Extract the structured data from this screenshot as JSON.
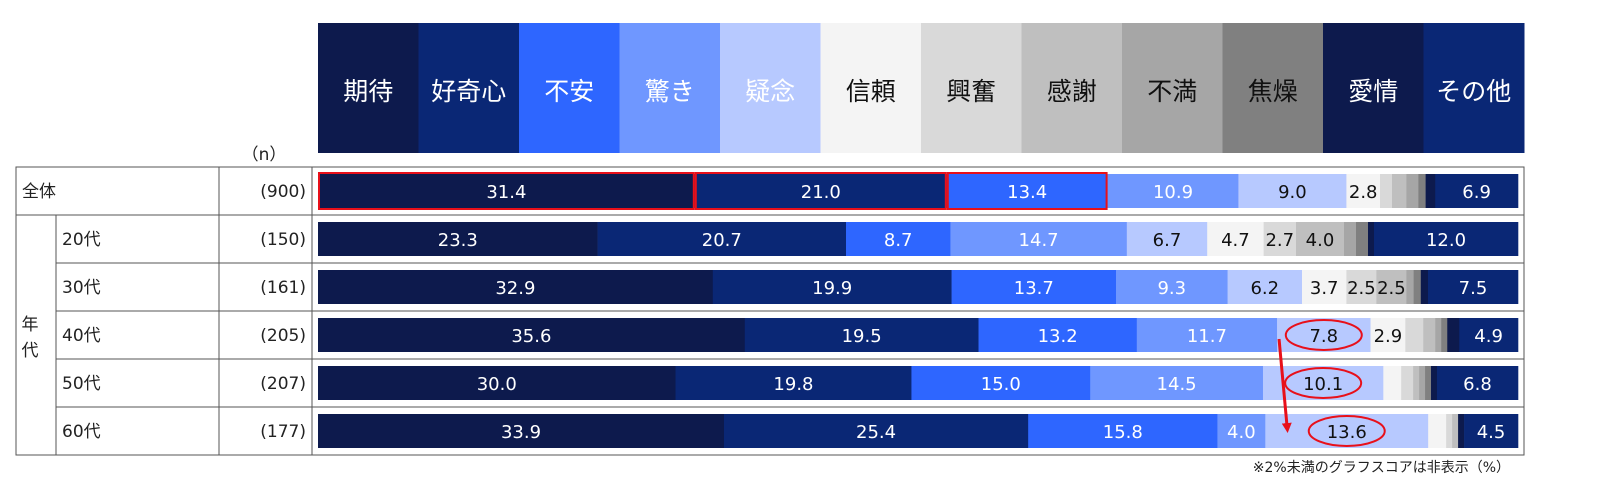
{
  "chart_data": {
    "type": "bar",
    "stacked": true,
    "orientation": "horizontal",
    "normalized": true,
    "legend_position": "top",
    "n_label": "（n）",
    "series": [
      {
        "name": "期待",
        "color": "#0d1a4d"
      },
      {
        "name": "好奇心",
        "color": "#0a2775"
      },
      {
        "name": "不安",
        "color": "#2e66ff"
      },
      {
        "name": "驚き",
        "color": "#6f97ff"
      },
      {
        "name": "疑念",
        "color": "#b7c9ff"
      },
      {
        "name": "信頼",
        "color": "#f4f4f4"
      },
      {
        "name": "興奮",
        "color": "#d9d9d9"
      },
      {
        "name": "感謝",
        "color": "#bfbfbf"
      },
      {
        "name": "不満",
        "color": "#a6a6a6"
      },
      {
        "name": "焦燥",
        "color": "#808080"
      },
      {
        "name": "愛情",
        "color": "#0d1a4d"
      },
      {
        "name": "その他",
        "color": "#0a2775"
      }
    ],
    "rows": [
      {
        "group": "全体",
        "label": "",
        "n": "(900)",
        "values": [
          31.4,
          21.0,
          13.4,
          10.9,
          9.0,
          2.8,
          1.0,
          1.2,
          1.0,
          0.6,
          0.8,
          6.9
        ]
      },
      {
        "group": "年代",
        "label": "20代",
        "n": "(150)",
        "values": [
          23.3,
          20.7,
          8.7,
          14.7,
          6.7,
          4.7,
          2.7,
          4.0,
          1.0,
          1.0,
          0.5,
          12.0
        ]
      },
      {
        "group": "年代",
        "label": "30代",
        "n": "(161)",
        "values": [
          32.9,
          19.9,
          13.7,
          9.3,
          6.2,
          3.7,
          2.5,
          2.5,
          0.6,
          0.6,
          0.6,
          7.5
        ]
      },
      {
        "group": "年代",
        "label": "40代",
        "n": "(205)",
        "values": [
          35.6,
          19.5,
          13.2,
          11.7,
          7.8,
          2.9,
          1.5,
          1.0,
          0.5,
          0.5,
          1.0,
          4.9
        ]
      },
      {
        "group": "年代",
        "label": "50代",
        "n": "(207)",
        "values": [
          30.0,
          19.8,
          15.0,
          14.5,
          10.1,
          1.5,
          1.0,
          0.5,
          0.5,
          0.5,
          0.5,
          6.8
        ]
      },
      {
        "group": "年代",
        "label": "60代",
        "n": "(177)",
        "values": [
          33.9,
          25.4,
          15.8,
          4.0,
          13.6,
          1.5,
          0.5,
          0.5,
          0.0,
          0.0,
          0.5,
          4.5
        ]
      }
    ],
    "show_label_min": 2.0,
    "highlights": [
      {
        "row": 0,
        "segments": [
          0,
          1,
          2
        ],
        "style": "red-box"
      },
      {
        "row": 3,
        "segment": 4,
        "style": "red-ellipse"
      },
      {
        "row": 4,
        "segment": 4,
        "style": "red-ellipse"
      },
      {
        "row": 5,
        "segment": 4,
        "style": "red-ellipse"
      }
    ],
    "trend_arrow": {
      "from_row": 3,
      "to_row": 5,
      "segment": 4,
      "color": "#e8101a"
    },
    "footnote": "※2%未満のグラフスコアは非表示（%）"
  }
}
